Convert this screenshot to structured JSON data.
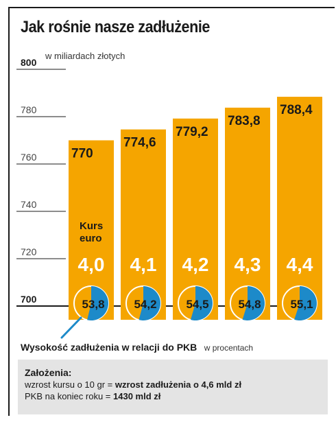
{
  "title": "Jak rośnie nasze zadłużenie",
  "unit_label": "w miliardach złotych",
  "chart_data": {
    "type": "bar",
    "title": "Jak rośnie nasze zadłużenie",
    "ylabel": "w miliardach złotych",
    "ylim": [
      700,
      800
    ],
    "yticks": [
      700,
      720,
      740,
      760,
      780,
      800
    ],
    "categories": [
      "4,0",
      "4,1",
      "4,2",
      "4,3",
      "4,4"
    ],
    "category_label": "Kurs euro",
    "values": [
      770,
      774.6,
      779.2,
      783.8,
      788.4
    ],
    "value_labels": [
      "770",
      "774,6",
      "779,2",
      "783,8",
      "788,4"
    ],
    "debt_to_gdp_pct": [
      53.8,
      54.2,
      54.5,
      54.8,
      55.1
    ],
    "debt_to_gdp_labels": [
      "53,8",
      "54,2",
      "54,5",
      "54,8",
      "55,1"
    ],
    "colors": {
      "bar": "#F5A500",
      "pie_fill": "#1D8AC9",
      "pie_rest": "#F5A500",
      "euro_text": "#ffffff"
    }
  },
  "pkb_caption": {
    "main": "Wysokość zadłużenia w relacji do PKB",
    "unit": "w procentach"
  },
  "assumptions": {
    "heading": "Założenia:",
    "line1_prefix": "wzrost kursu o 10 gr  = ",
    "line1_bold": "wzrost zadłużenia o 4,6 mld zł",
    "line2_prefix": "PKB na koniec roku = ",
    "line2_bold": "1430 mld zł"
  }
}
